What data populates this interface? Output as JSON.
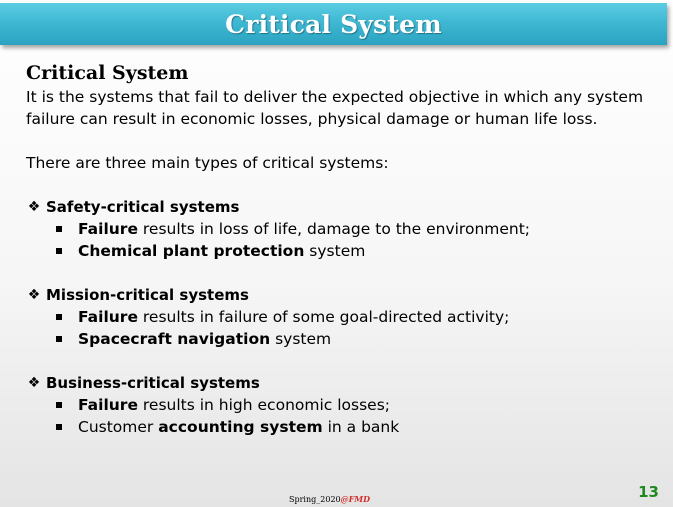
{
  "title": "Critical System",
  "heading": "Critical System",
  "intro": "It is the systems that fail to deliver the expected objective in which any system failure can result in economic losses, physical damage or human life loss.",
  "lead": "There are three main types of critical systems:",
  "sections": [
    {
      "title": "Safety-critical systems",
      "items": [
        {
          "pre": "",
          "bold": "Failure",
          "post": " results in loss of life, damage to the environment;"
        },
        {
          "pre": "",
          "bold": "Chemical plant protection",
          "post": " system"
        }
      ]
    },
    {
      "title": "Mission-critical systems",
      "items": [
        {
          "pre": "",
          "bold": "Failure",
          "post": " results in failure of some goal-directed activity;"
        },
        {
          "pre": "",
          "bold": "Spacecraft navigation",
          "post": " system"
        }
      ]
    },
    {
      "title": "Business-critical systems",
      "items": [
        {
          "pre": "",
          "bold": "Failure",
          "post": " results in high economic losses;"
        },
        {
          "pre": "Customer ",
          "bold": "accounting system",
          "post": " in a bank"
        }
      ]
    }
  ],
  "footer": {
    "text": "Spring_2020",
    "tag": "@FMD"
  },
  "page_number": "13",
  "colors": {
    "title_bar": "#3fb8d3",
    "page_number": "#1e8a1e",
    "footer_tag": "#d0312d"
  },
  "icons": {
    "section_bullet": "diamond-bullet-icon",
    "item_bullet": "square-bullet-icon"
  }
}
